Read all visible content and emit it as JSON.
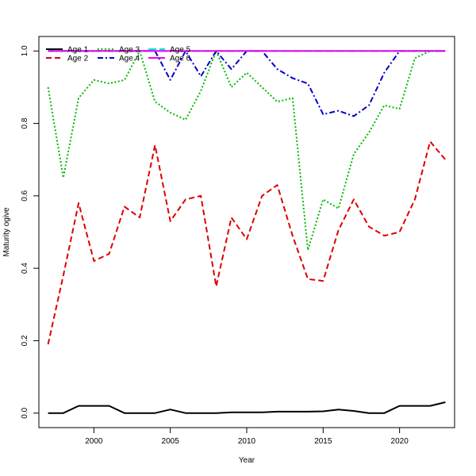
{
  "chart_data": {
    "type": "line",
    "title": "",
    "xlabel": "Year",
    "ylabel": "Maturity ogive",
    "xlim": [
      1996.4,
      2023.6
    ],
    "ylim": [
      -0.04,
      1.04
    ],
    "x_ticks": [
      2000,
      2005,
      2010,
      2015,
      2020
    ],
    "y_ticks": [
      0.0,
      0.2,
      0.4,
      0.6,
      0.8,
      1.0
    ],
    "x_tick_labels": [
      "2000",
      "2005",
      "2010",
      "2015",
      "2020"
    ],
    "y_tick_labels": [
      "0.0",
      "0.2",
      "0.4",
      "0.6",
      "0.8",
      "1.0"
    ],
    "legend_position": "top-left",
    "grid": false,
    "x": [
      1997,
      1998,
      1999,
      2000,
      2001,
      2002,
      2003,
      2004,
      2005,
      2006,
      2007,
      2008,
      2009,
      2010,
      2011,
      2012,
      2013,
      2014,
      2015,
      2016,
      2017,
      2018,
      2019,
      2020,
      2021,
      2022,
      2023
    ],
    "series": [
      {
        "name": "Age 1",
        "color": "#000000",
        "dash": "",
        "values": [
          0.0,
          0.0,
          0.02,
          0.02,
          0.02,
          0.0,
          0.0,
          0.0,
          0.01,
          0.0,
          0.0,
          0.0,
          0.002,
          0.002,
          0.002,
          0.004,
          0.004,
          0.004,
          0.005,
          0.01,
          0.006,
          0.0,
          0.0,
          0.02,
          0.02,
          0.02,
          0.03
        ]
      },
      {
        "name": "Age 2",
        "color": "#dd0000",
        "dash": "7,4",
        "values": [
          0.19,
          0.38,
          0.58,
          0.42,
          0.44,
          0.57,
          0.54,
          0.74,
          0.53,
          0.59,
          0.6,
          0.35,
          0.54,
          0.48,
          0.6,
          0.63,
          0.49,
          0.37,
          0.365,
          0.505,
          0.59,
          0.515,
          0.49,
          0.5,
          0.59,
          0.75,
          0.7
        ]
      },
      {
        "name": "Age 3",
        "color": "#00bb00",
        "dash": "2,2.5",
        "values": [
          0.9,
          0.65,
          0.87,
          0.92,
          0.91,
          0.92,
          1.0,
          0.86,
          0.83,
          0.81,
          0.89,
          1.0,
          0.9,
          0.94,
          0.9,
          0.86,
          0.87,
          0.45,
          0.59,
          0.565,
          0.715,
          0.775,
          0.85,
          0.84,
          0.98,
          1.0,
          1.0
        ]
      },
      {
        "name": "Age 4",
        "color": "#0000cc",
        "dash": "7,3,2,3",
        "values": [
          1.0,
          1.0,
          1.0,
          1.0,
          1.0,
          1.0,
          1.0,
          1.0,
          0.92,
          1.0,
          0.93,
          1.0,
          0.95,
          1.0,
          1.0,
          0.95,
          0.925,
          0.91,
          0.825,
          0.835,
          0.82,
          0.85,
          0.94,
          1.0,
          1.0,
          1.0,
          1.0
        ]
      },
      {
        "name": "Age 5",
        "color": "#00dddd",
        "dash": "10,4",
        "values": [
          1.0,
          1.0,
          1.0,
          1.0,
          1.0,
          1.0,
          1.0,
          1.0,
          1.0,
          1.0,
          1.0,
          1.0,
          1.0,
          1.0,
          1.0,
          1.0,
          1.0,
          1.0,
          1.0,
          1.0,
          1.0,
          1.0,
          1.0,
          1.0,
          1.0,
          1.0,
          1.0
        ]
      },
      {
        "name": "Age 6",
        "color": "#ee00ee",
        "dash": "",
        "values": [
          1.0,
          1.0,
          1.0,
          1.0,
          1.0,
          1.0,
          1.0,
          1.0,
          1.0,
          1.0,
          1.0,
          1.0,
          1.0,
          1.0,
          1.0,
          1.0,
          1.0,
          1.0,
          1.0,
          1.0,
          1.0,
          1.0,
          1.0,
          1.0,
          1.0,
          1.0,
          1.0
        ]
      }
    ]
  }
}
